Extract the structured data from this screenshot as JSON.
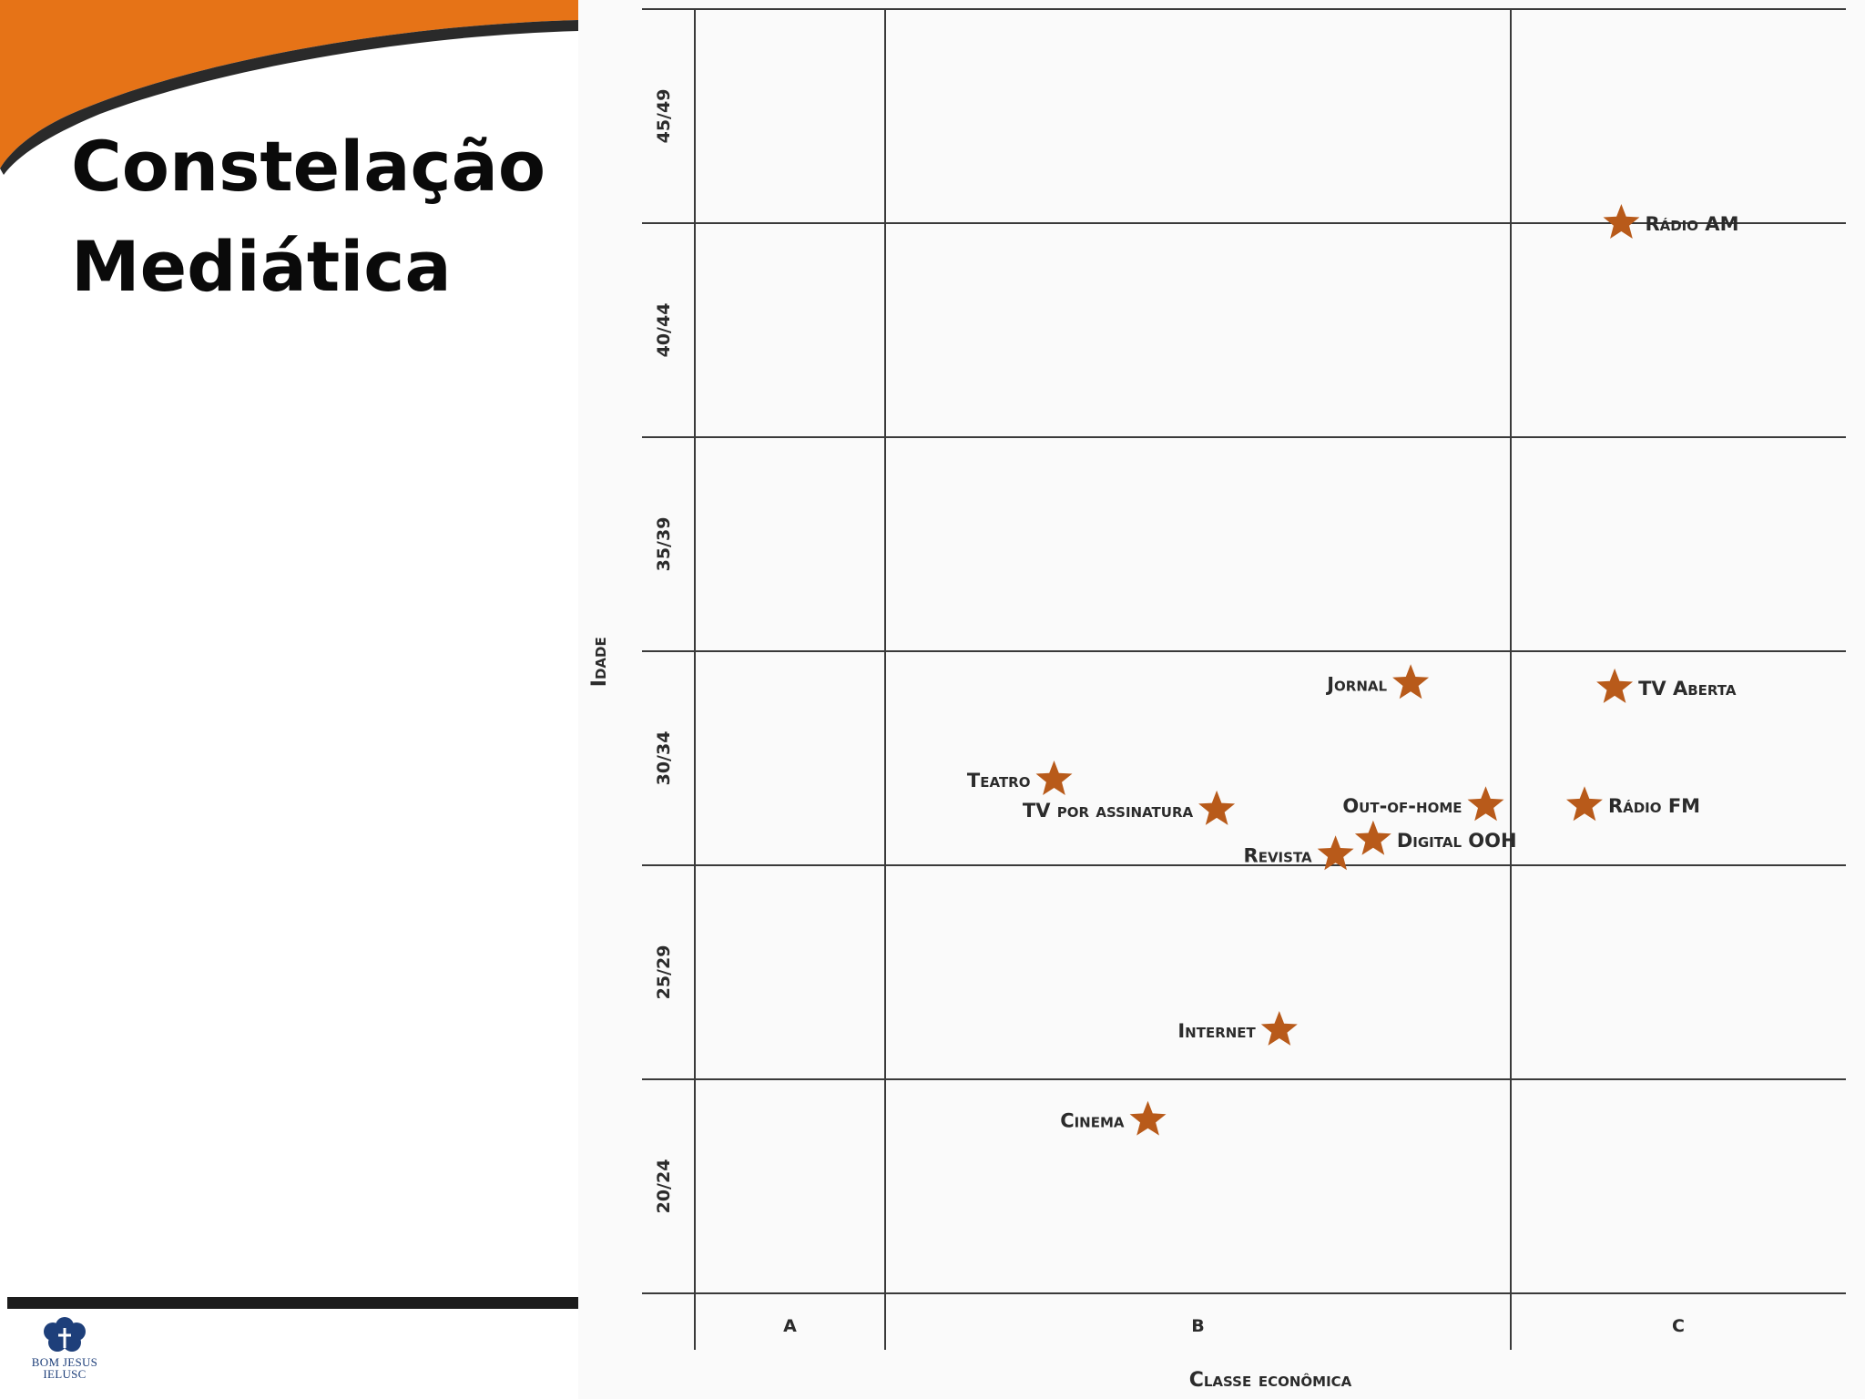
{
  "slide": {
    "title_lines": [
      "Constelação",
      "Mediática"
    ],
    "logo": {
      "line1": "BOM JESUS",
      "line2": "IELUSC"
    },
    "colors": {
      "orange": "#e67317",
      "navy": "#1e3f7a",
      "star": "#b85a1a"
    }
  },
  "chart_data": {
    "type": "scatter",
    "xlabel": "Classe econômica",
    "ylabel": "Idade",
    "x_categories": [
      "A",
      "B",
      "C"
    ],
    "y_categories": [
      "20/24",
      "25/29",
      "30/34",
      "35/39",
      "40/44",
      "45/49"
    ],
    "grid": true,
    "marker": "star",
    "points": [
      {
        "label": "Rádio AM",
        "x": 2.33,
        "y": 5.0
      },
      {
        "label": "Jornal",
        "x": 1.84,
        "y": 2.85
      },
      {
        "label": "TV Aberta",
        "x": 2.31,
        "y": 2.83
      },
      {
        "label": "Teatro",
        "x": 1.27,
        "y": 2.4
      },
      {
        "label": "TV por assinatura",
        "x": 1.53,
        "y": 2.26
      },
      {
        "label": "Out-of-home",
        "x": 1.96,
        "y": 2.28
      },
      {
        "label": "Rádio FM",
        "x": 2.22,
        "y": 2.28
      },
      {
        "label": "Digital OOH",
        "x": 1.78,
        "y": 2.12
      },
      {
        "label": "Revista",
        "x": 1.72,
        "y": 2.05
      },
      {
        "label": "Internet",
        "x": 1.63,
        "y": 1.23
      },
      {
        "label": "Cinema",
        "x": 1.42,
        "y": 0.81
      }
    ]
  }
}
